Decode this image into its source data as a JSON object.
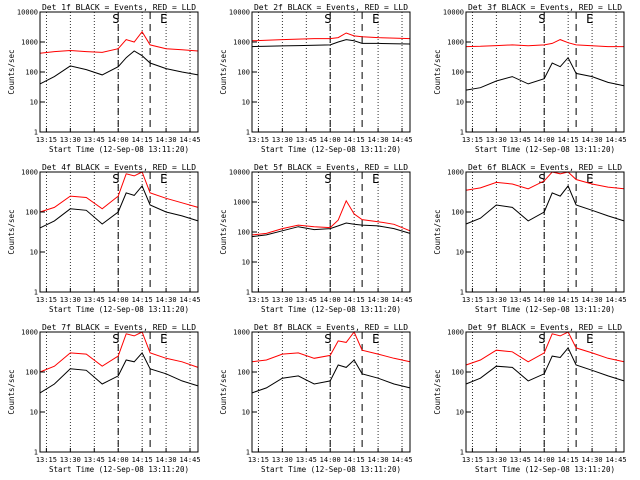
{
  "figure": {
    "ylabel": "Counts/sec",
    "xlabel": "Start Time (12-Sep-08 13:11:20)",
    "colors": {
      "events": "#000000",
      "lld": "#ff0000"
    },
    "x_ticks": [
      "13:15",
      "13:30",
      "13:45",
      "14:00",
      "14:15",
      "14:30",
      "14:45"
    ],
    "y_ticks": [
      "1",
      "10",
      "100",
      "1000",
      "10000"
    ],
    "marker_labels": [
      "S",
      "E"
    ]
  },
  "chart_data": [
    {
      "type": "line",
      "title": "Det 1f BLACK = Events, RED = LLD",
      "xlim": [
        "13:11",
        "14:50"
      ],
      "ylim": [
        1,
        10000
      ],
      "yscale": "log",
      "start_marker": "14:00",
      "end_marker": "14:20",
      "x": [
        "13:11",
        "13:20",
        "13:30",
        "13:40",
        "13:50",
        "14:00",
        "14:05",
        "14:10",
        "14:15",
        "14:20",
        "14:30",
        "14:40",
        "14:50"
      ],
      "series": [
        {
          "name": "Events",
          "color": "#000000",
          "values": [
            40,
            70,
            160,
            120,
            80,
            150,
            300,
            500,
            350,
            200,
            130,
            100,
            80
          ]
        },
        {
          "name": "LLD",
          "color": "#ff0000",
          "values": [
            420,
            480,
            520,
            480,
            450,
            600,
            1200,
            1000,
            2200,
            800,
            600,
            550,
            500
          ]
        }
      ]
    },
    {
      "type": "line",
      "title": "Det 2f BLACK = Events, RED = LLD",
      "xlim": [
        "13:11",
        "14:50"
      ],
      "ylim": [
        1,
        10000
      ],
      "yscale": "log",
      "start_marker": "14:00",
      "end_marker": "14:20",
      "x": [
        "13:11",
        "13:20",
        "13:30",
        "13:40",
        "13:50",
        "14:00",
        "14:05",
        "14:10",
        "14:15",
        "14:20",
        "14:30",
        "14:40",
        "14:50"
      ],
      "series": [
        {
          "name": "Events",
          "color": "#000000",
          "values": [
            700,
            720,
            740,
            760,
            780,
            800,
            1000,
            1200,
            1100,
            900,
            900,
            880,
            860
          ]
        },
        {
          "name": "LLD",
          "color": "#ff0000",
          "values": [
            1100,
            1150,
            1200,
            1250,
            1300,
            1300,
            1400,
            2000,
            1600,
            1500,
            1400,
            1350,
            1300
          ]
        }
      ]
    },
    {
      "type": "line",
      "title": "Det 3f BLACK = Events, RED = LLD",
      "xlim": [
        "13:11",
        "14:50"
      ],
      "ylim": [
        1,
        10000
      ],
      "yscale": "log",
      "start_marker": "14:00",
      "end_marker": "14:20",
      "x": [
        "13:11",
        "13:20",
        "13:30",
        "13:40",
        "13:50",
        "14:00",
        "14:05",
        "14:10",
        "14:15",
        "14:20",
        "14:30",
        "14:40",
        "14:50"
      ],
      "series": [
        {
          "name": "Events",
          "color": "#000000",
          "values": [
            25,
            30,
            50,
            70,
            40,
            60,
            200,
            150,
            300,
            90,
            70,
            45,
            35
          ]
        },
        {
          "name": "LLD",
          "color": "#ff0000",
          "values": [
            700,
            720,
            760,
            800,
            750,
            800,
            900,
            1200,
            950,
            800,
            750,
            700,
            700
          ]
        }
      ]
    },
    {
      "type": "line",
      "title": "Det 4f BLACK = Events, RED = LLD",
      "xlim": [
        "13:11",
        "14:50"
      ],
      "ylim": [
        1,
        1000
      ],
      "yscale": "log",
      "start_marker": "14:00",
      "end_marker": "14:20",
      "x": [
        "13:11",
        "13:20",
        "13:30",
        "13:40",
        "13:50",
        "14:00",
        "14:05",
        "14:10",
        "14:15",
        "14:20",
        "14:30",
        "14:40",
        "14:50"
      ],
      "series": [
        {
          "name": "Events",
          "color": "#000000",
          "values": [
            40,
            60,
            120,
            110,
            50,
            100,
            300,
            260,
            450,
            150,
            100,
            80,
            60
          ]
        },
        {
          "name": "LLD",
          "color": "#ff0000",
          "values": [
            100,
            130,
            250,
            230,
            120,
            250,
            900,
            800,
            1000,
            300,
            220,
            170,
            130
          ]
        }
      ]
    },
    {
      "type": "line",
      "title": "Det 5f BLACK = Events, RED = LLD",
      "xlim": [
        "13:11",
        "14:50"
      ],
      "ylim": [
        1,
        10000
      ],
      "yscale": "log",
      "start_marker": "14:00",
      "end_marker": "14:20",
      "x": [
        "13:11",
        "13:20",
        "13:30",
        "13:40",
        "13:50",
        "14:00",
        "14:05",
        "14:10",
        "14:15",
        "14:20",
        "14:30",
        "14:40",
        "14:50"
      ],
      "series": [
        {
          "name": "Events",
          "color": "#000000",
          "values": [
            70,
            80,
            110,
            150,
            120,
            130,
            160,
            200,
            180,
            170,
            160,
            130,
            90
          ]
        },
        {
          "name": "LLD",
          "color": "#ff0000",
          "values": [
            80,
            90,
            130,
            170,
            150,
            140,
            250,
            1100,
            400,
            260,
            220,
            180,
            110
          ]
        }
      ]
    },
    {
      "type": "line",
      "title": "Det 6f BLACK = Events, RED = LLD",
      "xlim": [
        "13:11",
        "14:50"
      ],
      "ylim": [
        1,
        1000
      ],
      "yscale": "log",
      "start_marker": "14:00",
      "end_marker": "14:20",
      "x": [
        "13:11",
        "13:20",
        "13:30",
        "13:40",
        "13:50",
        "14:00",
        "14:05",
        "14:10",
        "14:15",
        "14:20",
        "14:30",
        "14:40",
        "14:50"
      ],
      "series": [
        {
          "name": "Events",
          "color": "#000000",
          "values": [
            50,
            70,
            150,
            130,
            60,
            100,
            300,
            250,
            450,
            150,
            110,
            80,
            60
          ]
        },
        {
          "name": "LLD",
          "color": "#ff0000",
          "values": [
            350,
            400,
            550,
            500,
            380,
            600,
            1000,
            900,
            1000,
            650,
            500,
            420,
            380
          ]
        }
      ]
    },
    {
      "type": "line",
      "title": "Det 7f BLACK = Events, RED = LLD",
      "xlim": [
        "13:11",
        "14:50"
      ],
      "ylim": [
        1,
        1000
      ],
      "yscale": "log",
      "start_marker": "14:00",
      "end_marker": "14:20",
      "x": [
        "13:11",
        "13:20",
        "13:30",
        "13:40",
        "13:50",
        "14:00",
        "14:05",
        "14:10",
        "14:15",
        "14:20",
        "14:30",
        "14:40",
        "14:50"
      ],
      "series": [
        {
          "name": "Events",
          "color": "#000000",
          "values": [
            30,
            50,
            120,
            110,
            50,
            80,
            200,
            180,
            300,
            120,
            90,
            60,
            45
          ]
        },
        {
          "name": "LLD",
          "color": "#ff0000",
          "values": [
            100,
            140,
            300,
            280,
            140,
            250,
            900,
            800,
            1000,
            300,
            220,
            180,
            130
          ]
        }
      ]
    },
    {
      "type": "line",
      "title": "Det 8f BLACK = Events, RED = LLD",
      "xlim": [
        "13:11",
        "14:50"
      ],
      "ylim": [
        1,
        1000
      ],
      "yscale": "log",
      "start_marker": "14:00",
      "end_marker": "14:20",
      "x": [
        "13:11",
        "13:20",
        "13:30",
        "13:40",
        "13:50",
        "14:00",
        "14:05",
        "14:10",
        "14:15",
        "14:20",
        "14:30",
        "14:40",
        "14:50"
      ],
      "series": [
        {
          "name": "Events",
          "color": "#000000",
          "values": [
            30,
            40,
            70,
            80,
            50,
            60,
            150,
            130,
            200,
            90,
            70,
            50,
            40
          ]
        },
        {
          "name": "LLD",
          "color": "#ff0000",
          "values": [
            180,
            200,
            280,
            300,
            220,
            260,
            600,
            550,
            1000,
            350,
            280,
            220,
            180
          ]
        }
      ]
    },
    {
      "type": "line",
      "title": "Det 9f BLACK = Events, RED = LLD",
      "xlim": [
        "13:11",
        "14:50"
      ],
      "ylim": [
        1,
        1000
      ],
      "yscale": "log",
      "start_marker": "14:00",
      "end_marker": "14:20",
      "x": [
        "13:11",
        "13:20",
        "13:30",
        "13:40",
        "13:50",
        "14:00",
        "14:05",
        "14:10",
        "14:15",
        "14:20",
        "14:30",
        "14:40",
        "14:50"
      ],
      "series": [
        {
          "name": "Events",
          "color": "#000000",
          "values": [
            50,
            70,
            140,
            130,
            60,
            90,
            250,
            230,
            400,
            150,
            110,
            80,
            60
          ]
        },
        {
          "name": "LLD",
          "color": "#ff0000",
          "values": [
            150,
            200,
            350,
            320,
            180,
            300,
            900,
            800,
            1000,
            400,
            300,
            220,
            180
          ]
        }
      ]
    }
  ]
}
